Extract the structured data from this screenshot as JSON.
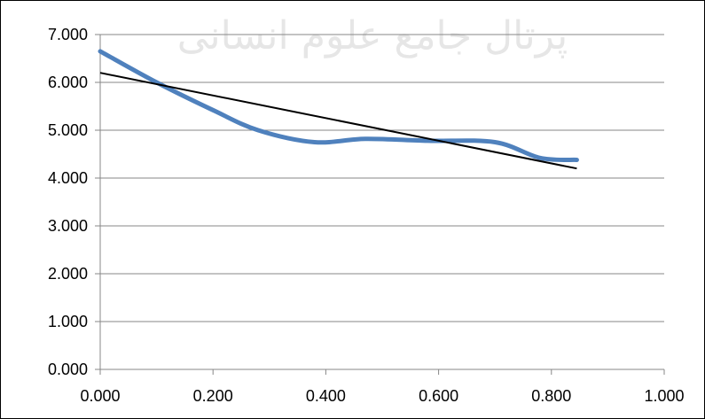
{
  "watermark": {
    "text": "پرتال جامع علوم انسانی",
    "color": "#e6e6e6"
  },
  "chart_data": {
    "type": "line",
    "title": "",
    "xlabel": "",
    "ylabel": "",
    "xlim": [
      0,
      1
    ],
    "ylim": [
      0,
      7
    ],
    "x_ticks": [
      0,
      0.2,
      0.4,
      0.6,
      0.8,
      1.0
    ],
    "y_ticks": [
      0,
      1,
      2,
      3,
      4,
      5,
      6,
      7
    ],
    "x_tick_labels": [
      "0.000",
      "0.200",
      "0.400",
      "0.600",
      "0.800",
      "1.000"
    ],
    "y_tick_labels": [
      "0.000",
      "1.000",
      "2.000",
      "3.000",
      "4.000",
      "5.000",
      "6.000",
      "7.000"
    ],
    "grid": "horizontal",
    "legend": "none",
    "series": [
      {
        "style": "smooth",
        "color": "#4f81bd",
        "x": [
          0.0,
          0.1,
          0.2,
          0.28,
          0.38,
          0.47,
          0.58,
          0.7,
          0.78,
          0.845
        ],
        "y": [
          6.65,
          6.0,
          5.42,
          5.0,
          4.75,
          4.82,
          4.78,
          4.75,
          4.42,
          4.38
        ]
      },
      {
        "style": "trendline",
        "color": "#000000",
        "x": [
          0.0,
          0.845
        ],
        "y": [
          6.2,
          4.2
        ]
      }
    ]
  }
}
